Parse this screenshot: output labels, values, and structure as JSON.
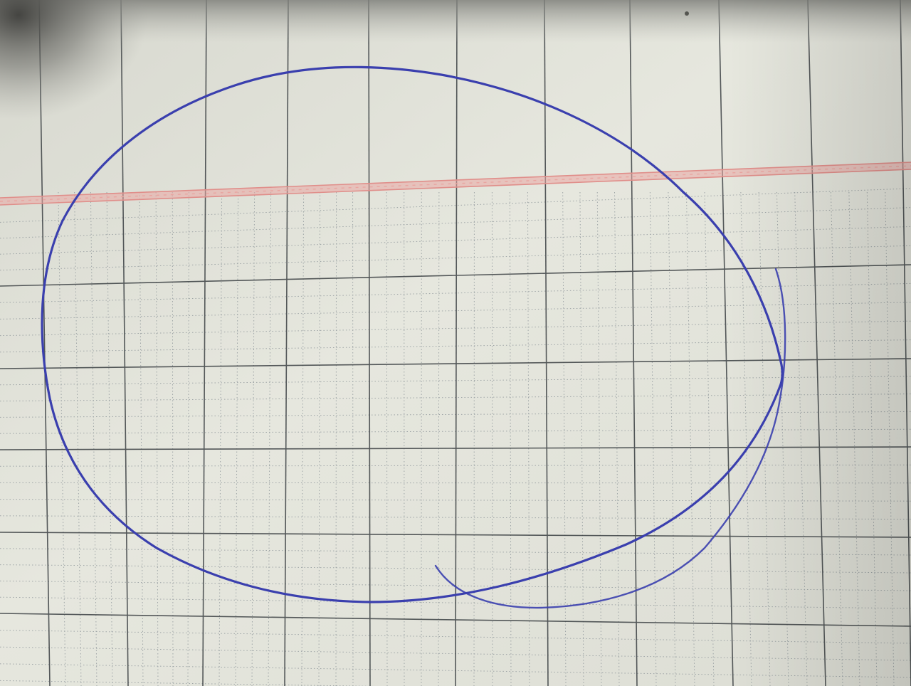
{
  "scene": {
    "subject": "graph-paper-with-pen-loop",
    "paper_color": "#e3e4da",
    "shadow_color": "#4d4d4a",
    "major_grid_color": "#3a3f42",
    "minor_grid_color": "#8e969a",
    "margin_line_color": "#e8a3a0",
    "ink_color": "#3a3fae"
  }
}
